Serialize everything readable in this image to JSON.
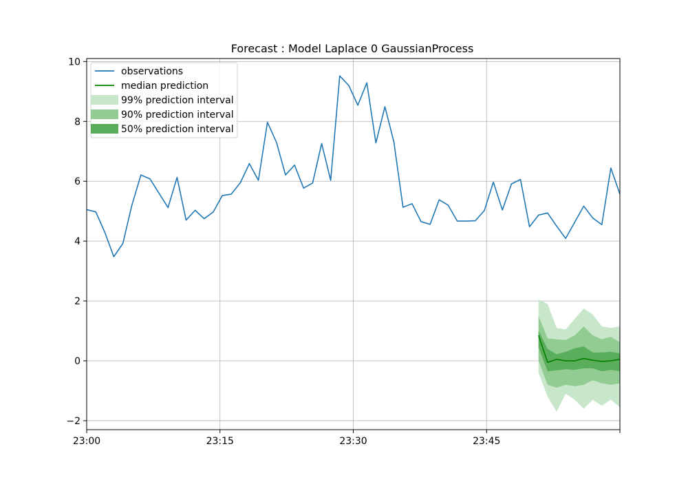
{
  "chart_data": {
    "type": "line",
    "title": "Forecast : Model Laplace 0 GaussianProcess",
    "xlabel": "",
    "ylabel": "",
    "x_start": "23:00",
    "x_end": "23:59",
    "y_range": [
      -2.3,
      10.1
    ],
    "grid": true,
    "legend_placement": "top-left",
    "x_ticks": [
      "23:00",
      "23:15",
      "23:30",
      "23:45",
      ""
    ],
    "y_ticks": [
      "−2",
      "0",
      "2",
      "4",
      "6",
      "8",
      "10"
    ],
    "y_tick_values": [
      -2,
      0,
      2,
      4,
      6,
      8,
      10
    ],
    "legend": [
      {
        "label": "observations",
        "kind": "line",
        "color": "#1f77b4"
      },
      {
        "label": "median prediction",
        "kind": "line",
        "color": "#008000"
      },
      {
        "label": "99% prediction interval",
        "kind": "patch",
        "color": "#c8e6c9"
      },
      {
        "label": "90% prediction interval",
        "kind": "patch",
        "color": "#93cc93"
      },
      {
        "label": "50% prediction interval",
        "kind": "patch",
        "color": "#5aad5a"
      }
    ],
    "observations": {
      "name": "observations",
      "color": "#1f77b4",
      "times": [
        "23:00",
        "23:01",
        "23:02",
        "23:03",
        "23:04",
        "23:05",
        "23:06",
        "23:07",
        "23:08",
        "23:09",
        "23:10",
        "23:11",
        "23:12",
        "23:13",
        "23:14",
        "23:15",
        "23:16",
        "23:17",
        "23:18",
        "23:19",
        "23:20",
        "23:21",
        "23:22",
        "23:23",
        "23:24",
        "23:25",
        "23:26",
        "23:27",
        "23:28",
        "23:29",
        "23:30",
        "23:31",
        "23:32",
        "23:33",
        "23:34",
        "23:35",
        "23:36",
        "23:37",
        "23:38",
        "23:39",
        "23:40",
        "23:41",
        "23:42",
        "23:43",
        "23:44",
        "23:45",
        "23:46",
        "23:47",
        "23:48",
        "23:49",
        "23:50",
        "23:51",
        "23:52",
        "23:53",
        "23:54",
        "23:55",
        "23:56",
        "23:57",
        "23:58",
        "23:59"
      ],
      "values": [
        5.05,
        4.98,
        4.3,
        3.48,
        3.92,
        5.2,
        6.21,
        6.08,
        5.6,
        5.12,
        6.13,
        4.7,
        5.03,
        4.75,
        4.97,
        5.52,
        5.57,
        5.95,
        6.59,
        6.03,
        7.97,
        7.3,
        6.21,
        6.54,
        5.77,
        5.94,
        7.26,
        6.03,
        9.52,
        9.2,
        8.54,
        9.29,
        7.28,
        8.49,
        7.3,
        5.13,
        5.25,
        4.65,
        4.56,
        5.38,
        5.2,
        4.67,
        4.67,
        4.68,
        5.02,
        5.97,
        5.04,
        5.91,
        6.06,
        4.48,
        4.87,
        4.94,
        4.5,
        4.09,
        4.63,
        5.17,
        4.77,
        4.55,
        6.44,
        5.57
      ]
    },
    "forecast": {
      "times": [
        "23:50",
        "23:51",
        "23:52",
        "23:53",
        "23:54",
        "23:55",
        "23:56",
        "23:57",
        "23:58",
        "23:59"
      ],
      "median": {
        "name": "median prediction",
        "color": "#008000",
        "values": [
          0.85,
          -0.05,
          0.05,
          0.0,
          0.0,
          0.08,
          0.02,
          -0.02,
          0.0,
          0.05
        ]
      },
      "bands": [
        {
          "name": "99% prediction interval",
          "color": "#c8e6c9",
          "lower": [
            -0.4,
            -1.2,
            -1.7,
            -1.1,
            -1.3,
            -1.6,
            -1.3,
            -1.5,
            -1.3,
            -1.55
          ],
          "upper": [
            2.05,
            1.9,
            1.1,
            1.05,
            1.4,
            1.75,
            1.55,
            1.15,
            1.1,
            1.15
          ]
        },
        {
          "name": "90% prediction interval",
          "color": "#93cc93",
          "lower": [
            0.0,
            -0.8,
            -0.9,
            -0.8,
            -0.85,
            -0.8,
            -0.65,
            -0.75,
            -0.8,
            -0.75
          ],
          "upper": [
            1.5,
            0.75,
            0.72,
            0.7,
            0.85,
            1.15,
            0.85,
            0.72,
            0.8,
            0.62
          ]
        },
        {
          "name": "50% prediction interval",
          "color": "#5aad5a",
          "lower": [
            0.45,
            -0.35,
            -0.32,
            -0.28,
            -0.3,
            -0.25,
            -0.25,
            -0.35,
            -0.3,
            -0.35
          ],
          "upper": [
            1.0,
            0.4,
            0.22,
            0.3,
            0.42,
            0.48,
            0.28,
            0.28,
            0.3,
            0.25
          ]
        }
      ]
    }
  }
}
